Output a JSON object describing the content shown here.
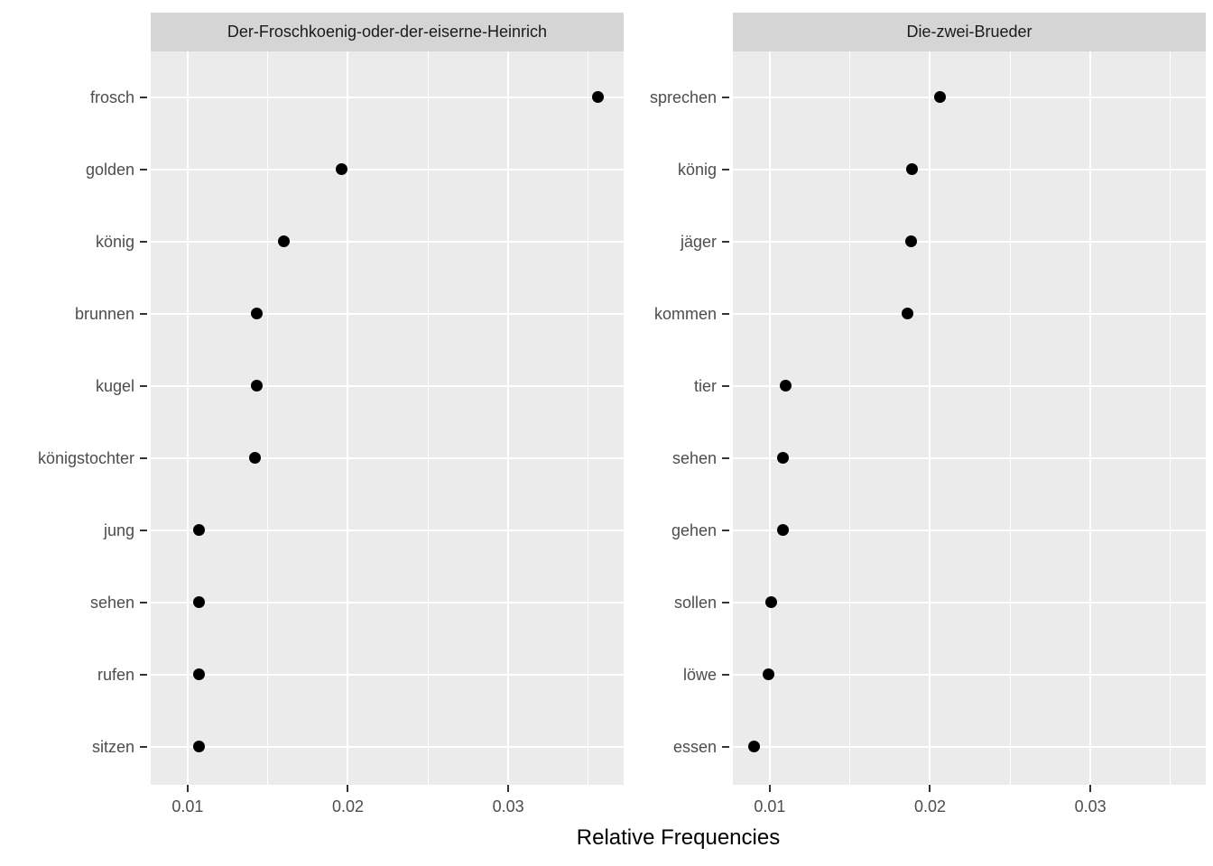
{
  "chart_data": {
    "type": "scatter",
    "title": "",
    "xlabel": "Relative Frequencies",
    "ylabel": "",
    "x_ticks": [
      0.01,
      0.02,
      0.03
    ],
    "x_minor_ticks": [
      0.015,
      0.025,
      0.035
    ],
    "xlim": [
      0.0077,
      0.0372
    ],
    "grid": "on",
    "legend": "none",
    "facets": [
      {
        "label": "Der-Froschkoenig-oder-der-eiserne-Heinrich",
        "words": [
          "frosch",
          "golden",
          "könig",
          "brunnen",
          "kugel",
          "königstochter",
          "jung",
          "sehen",
          "rufen",
          "sitzen"
        ],
        "values": [
          0.0356,
          0.0196,
          0.016,
          0.0143,
          0.0143,
          0.0142,
          0.0107,
          0.0107,
          0.0107,
          0.0107
        ]
      },
      {
        "label": "Die-zwei-Brueder",
        "words": [
          "sprechen",
          "könig",
          "jäger",
          "kommen",
          "tier",
          "sehen",
          "gehen",
          "sollen",
          "löwe",
          "essen"
        ],
        "values": [
          0.0206,
          0.0189,
          0.0188,
          0.0186,
          0.011,
          0.0108,
          0.0108,
          0.0101,
          0.0099,
          0.009
        ]
      }
    ],
    "colors": {
      "panel_bg": "#EBEBEB",
      "strip_bg": "#D5D5D5",
      "gridline": "#FFFFFF",
      "point": "#000000",
      "axis_text": "#4D4D4D",
      "strip_text": "#1A1A1A",
      "axis_title_text": "#000000"
    }
  }
}
